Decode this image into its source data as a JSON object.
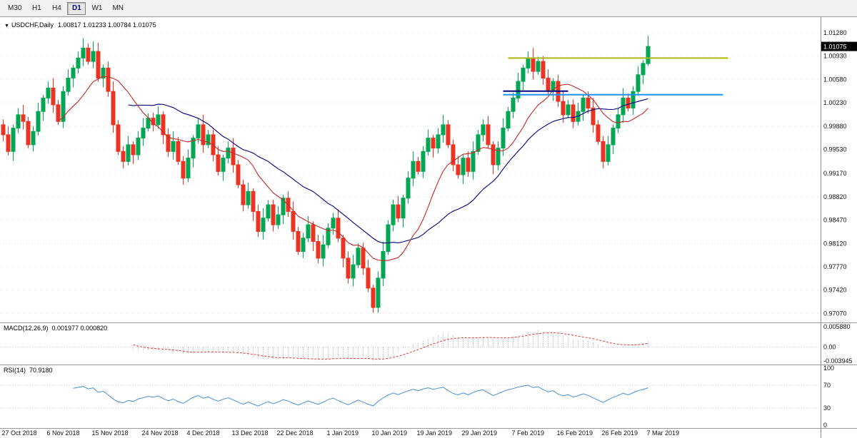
{
  "toolbar": {
    "timeframes": [
      {
        "label": "M30",
        "active": false
      },
      {
        "label": "H1",
        "active": false
      },
      {
        "label": "H4",
        "active": false
      },
      {
        "label": "D1",
        "active": true
      },
      {
        "label": "W1",
        "active": false
      },
      {
        "label": "MN",
        "active": false
      }
    ]
  },
  "chart_header": {
    "symbol_label": "USDCHF,Daily",
    "ohlc_label": "1.00817 1.01233 1.00784 1.01075"
  },
  "chart_data": {
    "type": "candlestick",
    "symbol": "USDCHF",
    "timeframe": "Daily",
    "ylim": [
      0.97,
      1.0145
    ],
    "slots": 164,
    "first_open": 0.999,
    "closes": [
      0.9975,
      0.995,
      0.9985,
      1.0005,
      0.9995,
      0.996,
      0.998,
      1.001,
      1.003,
      1.0045,
      1.002,
      0.9995,
      1.004,
      1.006,
      1.0075,
      1.009,
      1.0105,
      1.0085,
      1.01,
      1.006,
      1.0075,
      1.004,
      0.999,
      0.995,
      0.9935,
      0.996,
      0.9945,
      0.997,
      0.9985,
      1.0,
      0.999,
      1.0005,
      0.9975,
      0.995,
      0.9965,
      0.9935,
      0.991,
      0.994,
      0.997,
      0.999,
      0.996,
      0.9975,
      0.9945,
      0.992,
      0.994,
      0.9955,
      0.993,
      0.99,
      0.987,
      0.989,
      0.986,
      0.983,
      0.985,
      0.987,
      0.984,
      0.9855,
      0.988,
      0.986,
      0.983,
      0.98,
      0.982,
      0.984,
      0.9815,
      0.979,
      0.981,
      0.9835,
      0.985,
      0.982,
      0.979,
      0.976,
      0.978,
      0.9805,
      0.9775,
      0.9745,
      0.9716,
      0.976,
      0.98,
      0.984,
      0.987,
      0.985,
      0.988,
      0.991,
      0.9935,
      0.992,
      0.995,
      0.997,
      0.9955,
      0.9975,
      0.999,
      0.996,
      0.993,
      0.9915,
      0.994,
      0.992,
      0.995,
      0.9975,
      0.999,
      0.996,
      0.993,
      0.9955,
      0.9985,
      1.001,
      1.003,
      1.0055,
      1.0075,
      1.009,
      1.007,
      1.0085,
      1.006,
      1.004,
      1.0055,
      1.0025,
      1.0005,
      1.002,
      0.9995,
      1.001,
      1.003,
      1.0015,
      0.999,
      0.9965,
      0.9935,
      0.996,
      0.9985,
      1.0005,
      1.003,
      1.0015,
      1.004,
      1.0065,
      1.0082,
      1.01075
    ],
    "wick_up_pattern": [
      0.0008,
      0.0013,
      0.0005,
      0.001,
      0.0015,
      0.0007
    ],
    "wick_down_pattern": [
      0.001,
      0.0006,
      0.0014,
      0.0008,
      0.0012,
      0.0005
    ],
    "overrides": {
      "18": {
        "h": 1.0115
      },
      "74": {
        "l": 0.9708
      },
      "129": {
        "o": 1.00817,
        "h": 1.01233,
        "l": 1.00784,
        "c": 1.01075
      }
    },
    "ma_fast_period": 12,
    "ma_slow_period": 26,
    "hlines": [
      {
        "price": 1.009,
        "color": "#ADB500",
        "from_index": 101,
        "to_index": 145,
        "width": 2
      },
      {
        "price": 1.0035,
        "color": "#1E90FF",
        "from_index": 100,
        "to_index": 144,
        "width": 2
      },
      {
        "price": 1.00405,
        "color": "#000080",
        "from_index": 100,
        "to_index": 113,
        "width": 2
      }
    ],
    "current_price": {
      "text": "1.01075",
      "value": 1.01075
    },
    "y_labels": [
      {
        "text": "1.01280",
        "value": 1.0128
      },
      {
        "text": "1.00930",
        "value": 1.0093
      },
      {
        "text": "1.00580",
        "value": 1.0058
      },
      {
        "text": "1.00230",
        "value": 1.0023
      },
      {
        "text": "0.99880",
        "value": 0.9988
      },
      {
        "text": "0.99530",
        "value": 0.9953
      },
      {
        "text": "0.99170",
        "value": 0.9917
      },
      {
        "text": "0.98820",
        "value": 0.9882
      },
      {
        "text": "0.98470",
        "value": 0.9847
      },
      {
        "text": "0.98120",
        "value": 0.9812
      },
      {
        "text": "0.97770",
        "value": 0.9777
      },
      {
        "text": "0.97420",
        "value": 0.9742
      },
      {
        "text": "0.97070",
        "value": 0.9707
      }
    ],
    "x_labels": [
      {
        "text": "27 Oct 2018",
        "index": 0
      },
      {
        "text": "6 Nov 2018",
        "index": 9
      },
      {
        "text": "15 Nov 2018",
        "index": 18
      },
      {
        "text": "24 Nov 2018",
        "index": 28
      },
      {
        "text": "4 Dec 2018",
        "index": 37
      },
      {
        "text": "13 Dec 2018",
        "index": 46
      },
      {
        "text": "22 Dec 2018",
        "index": 55
      },
      {
        "text": "1 Jan 2019",
        "index": 65
      },
      {
        "text": "10 Jan 2019",
        "index": 74
      },
      {
        "text": "19 Jan 2019",
        "index": 83
      },
      {
        "text": "29 Jan 2019",
        "index": 92
      },
      {
        "text": "7 Feb 2019",
        "index": 102
      },
      {
        "text": "16 Feb 2019",
        "index": 111
      },
      {
        "text": "26 Feb 2019",
        "index": 120
      },
      {
        "text": "7 Mar 2019",
        "index": 129
      }
    ],
    "indicators": {
      "macd": {
        "name_label": "MACD(12,26,9)",
        "values_label": "0.001977 0.000820",
        "fast": 12,
        "slow": 26,
        "signal": 9,
        "axis_labels": [
          {
            "text": "0.005880",
            "value": 0.00588
          },
          {
            "text": "0.00",
            "value": 0.0
          },
          {
            "text": "-0.003945",
            "value": -0.003945
          }
        ]
      },
      "rsi": {
        "name_label": "RSI(14)",
        "value_label": "70.9180",
        "period": 14,
        "levels": [
          70,
          30
        ],
        "axis_labels": [
          {
            "text": "100",
            "value": 100
          },
          {
            "text": "70",
            "value": 70
          },
          {
            "text": "30",
            "value": 30
          },
          {
            "text": "0",
            "value": 0
          }
        ]
      }
    }
  },
  "colors": {
    "up": "#00A651",
    "down": "#EA3323",
    "ma_fast": "#C62828",
    "ma_slow": "#000080",
    "macd_hist": "#A8A8A8",
    "macd_signal": "#E53935",
    "rsi_line": "#4A90D9",
    "grid": "#E3E3E3",
    "level_dotted": "#C8C8C8",
    "axis_line": "#8C8C8C",
    "badge_bg": "#000000",
    "badge_text": "#FFFFFF"
  }
}
